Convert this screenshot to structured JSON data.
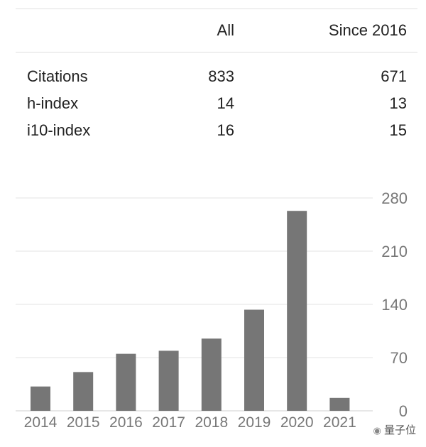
{
  "table": {
    "headers": [
      "All",
      "Since 2016"
    ],
    "rows": [
      {
        "label": "Citations",
        "all": "833",
        "since": "671"
      },
      {
        "label": "h-index",
        "all": "14",
        "since": "13"
      },
      {
        "label": "i10-index",
        "all": "16",
        "since": "15"
      }
    ]
  },
  "chart_data": {
    "type": "bar",
    "categories": [
      "2014",
      "2015",
      "2016",
      "2017",
      "2018",
      "2019",
      "2020",
      "2021"
    ],
    "values": [
      32,
      51,
      75,
      79,
      95,
      133,
      263,
      17
    ],
    "ylim": [
      0,
      280
    ],
    "yticks": [
      0,
      70,
      140,
      210,
      280
    ],
    "grid": true,
    "bar_color": "#767676"
  },
  "watermark": "量子位"
}
